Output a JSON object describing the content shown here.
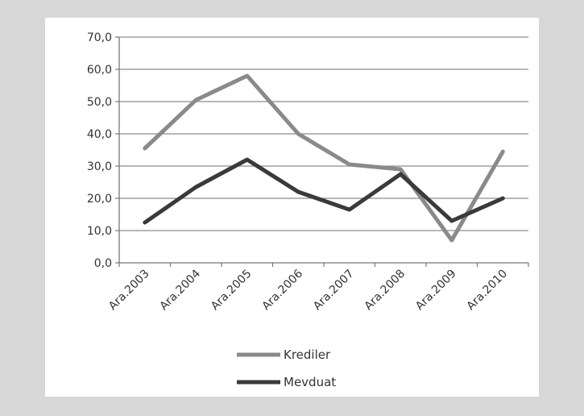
{
  "chart_data": {
    "type": "line",
    "categories": [
      "Ara.2003",
      "Ara.2004",
      "Ara.2005",
      "Ara.2006",
      "Ara.2007",
      "Ara.2008",
      "Ara.2009",
      "Ara.2010"
    ],
    "series": [
      {
        "name": "Krediler",
        "values": [
          35.5,
          50.5,
          58.0,
          40.0,
          30.5,
          29.0,
          7.0,
          34.5
        ],
        "color": "#8a8a8a"
      },
      {
        "name": "Mevduat",
        "values": [
          12.5,
          23.5,
          32.0,
          22.0,
          16.5,
          27.5,
          13.0,
          20.0
        ],
        "color": "#3a3a3a"
      }
    ],
    "yticks": [
      "0,0",
      "10,0",
      "20,0",
      "30,0",
      "40,0",
      "50,0",
      "60,0",
      "70,0"
    ],
    "ylim": [
      0,
      70
    ],
    "grid": true,
    "legend_position": "bottom"
  }
}
